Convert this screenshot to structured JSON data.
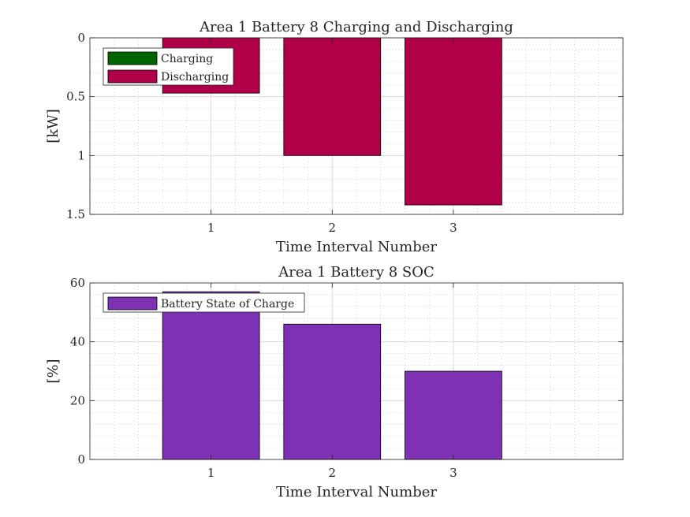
{
  "colors": {
    "charging": "#006400",
    "discharging": "#b00048",
    "soc": "#7e31b3",
    "axis": "#262626",
    "grid_major": "#dcdcdc",
    "grid_minor": "#c8c8c8"
  },
  "chart_data": [
    {
      "type": "bar",
      "title": "Area 1 Battery 8 Charging and Discharging",
      "xlabel": "Time Interval Number",
      "ylabel": "[kW]",
      "categories": [
        1,
        2,
        3
      ],
      "xlim": [
        0,
        4.4
      ],
      "ylim": [
        0,
        1.5
      ],
      "y_reversed": true,
      "yticks": [
        0,
        0.5,
        1,
        1.5
      ],
      "ytick_labels": [
        "0",
        "0.5",
        "1",
        "1.5"
      ],
      "xtick_labels": [
        "1",
        "2",
        "3"
      ],
      "grid": "on",
      "minor_grid": "on",
      "legend_position": "top-left",
      "series": [
        {
          "name": "Charging",
          "color_key": "charging",
          "values": [
            0,
            0,
            0
          ]
        },
        {
          "name": "Discharging",
          "color_key": "discharging",
          "values": [
            0.47,
            1.0,
            1.42
          ]
        }
      ]
    },
    {
      "type": "bar",
      "title": "Area 1 Battery 8 SOC",
      "xlabel": "Time Interval Number",
      "ylabel": "[%]",
      "categories": [
        1,
        2,
        3
      ],
      "xlim": [
        0,
        4.4
      ],
      "ylim": [
        0,
        60
      ],
      "y_reversed": false,
      "yticks": [
        0,
        20,
        40,
        60
      ],
      "ytick_labels": [
        "0",
        "20",
        "40",
        "60"
      ],
      "xtick_labels": [
        "1",
        "2",
        "3"
      ],
      "grid": "on",
      "minor_grid": "on",
      "legend_position": "top-left",
      "series": [
        {
          "name": "Battery State of Charge",
          "color_key": "soc",
          "values": [
            57,
            46,
            30
          ]
        }
      ]
    }
  ]
}
